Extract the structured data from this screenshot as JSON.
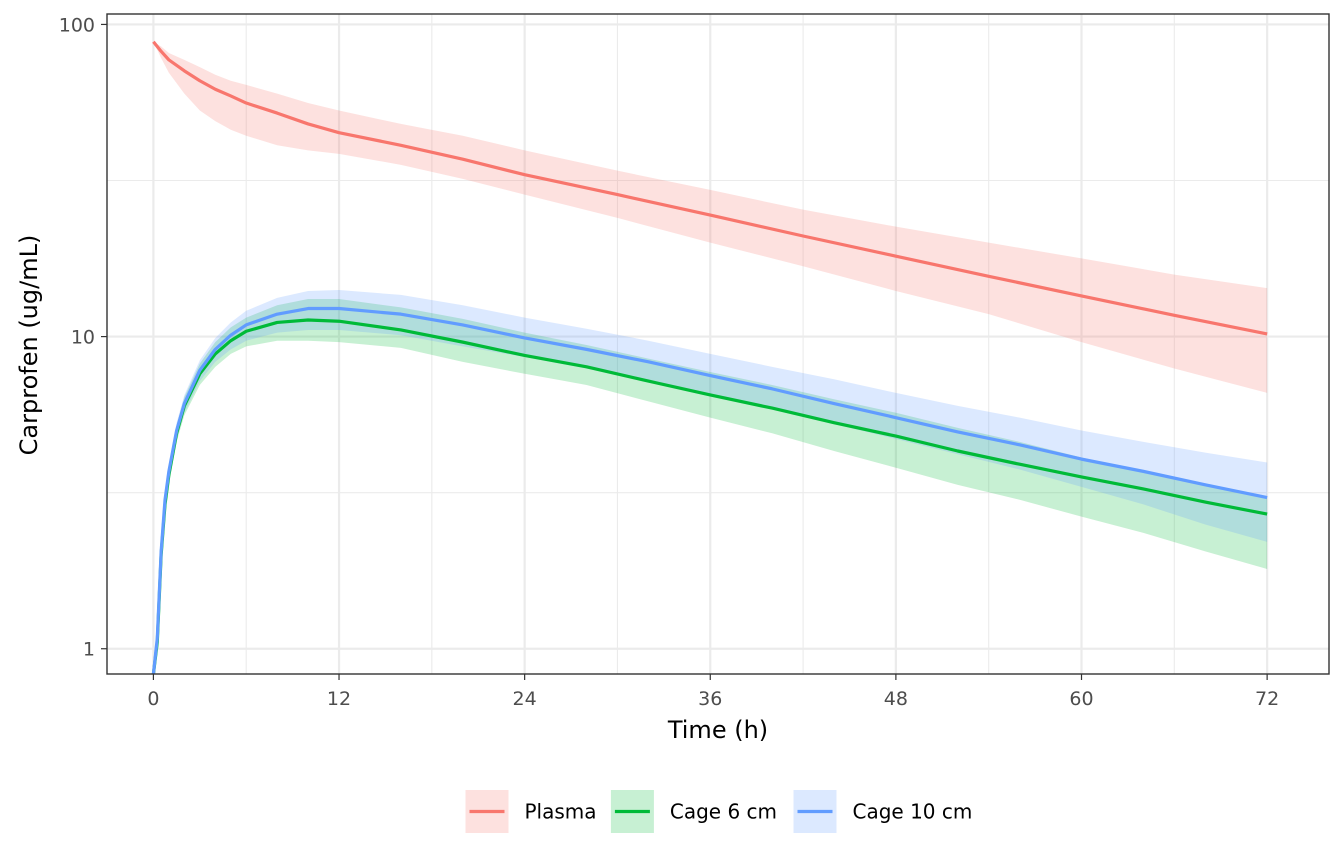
{
  "chart_data": {
    "type": "line",
    "title": "",
    "xlabel": "Time (h)",
    "ylabel": "Carprofen (ug/mL)",
    "x_scale": "linear",
    "y_scale": "log10",
    "xlim": [
      -3,
      76
    ],
    "ylim": [
      0.83,
      108
    ],
    "x_ticks": [
      0,
      12,
      24,
      36,
      48,
      60,
      72
    ],
    "x_tick_labels": [
      "0",
      "12",
      "24",
      "36",
      "48",
      "60",
      "72"
    ],
    "y_ticks": [
      1,
      10,
      100
    ],
    "y_tick_labels": [
      "1",
      "10",
      "100"
    ],
    "grid": true,
    "legend_position": "bottom",
    "series": [
      {
        "name": "Plasma",
        "color": "#F8766D",
        "x": [
          0,
          0.5,
          1,
          2,
          3,
          4,
          5,
          6,
          8,
          10,
          12,
          16,
          20,
          24,
          30,
          36,
          42,
          48,
          54,
          60,
          66,
          72
        ],
        "y": [
          88,
          82,
          77,
          71,
          66,
          62,
          59,
          56,
          52,
          48,
          45,
          41,
          37,
          33,
          28.5,
          24.5,
          21,
          18.1,
          15.6,
          13.5,
          11.7,
          10.2
        ],
        "lower": [
          88,
          78,
          70,
          60,
          53,
          49,
          46,
          44,
          41,
          39.5,
          38.5,
          35.5,
          32,
          28.5,
          24,
          20,
          16.8,
          14,
          11.8,
          9.6,
          7.9,
          6.6
        ],
        "upper": [
          88,
          85,
          81,
          77,
          73,
          69,
          66,
          64,
          60,
          56,
          53,
          48,
          44,
          39.5,
          34,
          29.5,
          25.5,
          22.5,
          20,
          17.8,
          15.8,
          14.3
        ]
      },
      {
        "name": "Cage 6 cm",
        "color": "#00BA38",
        "x": [
          0,
          0.25,
          0.5,
          0.75,
          1,
          1.5,
          2,
          3,
          4,
          5,
          6,
          8,
          10,
          12,
          16,
          20,
          24,
          28,
          32,
          36,
          40,
          44,
          48,
          52,
          56,
          60,
          64,
          68,
          72
        ],
        "y": [
          0.83,
          1.05,
          2.0,
          2.9,
          3.6,
          4.9,
          6.0,
          7.6,
          8.8,
          9.7,
          10.4,
          11.1,
          11.3,
          11.2,
          10.5,
          9.6,
          8.7,
          8.0,
          7.2,
          6.5,
          5.9,
          5.3,
          4.8,
          4.3,
          3.9,
          3.55,
          3.25,
          2.95,
          2.7
        ],
        "lower": [
          0.83,
          1.0,
          1.9,
          2.8,
          3.4,
          4.6,
          5.6,
          7.0,
          8.0,
          8.8,
          9.3,
          9.7,
          9.7,
          9.6,
          9.2,
          8.3,
          7.6,
          7.0,
          6.2,
          5.5,
          4.9,
          4.3,
          3.8,
          3.35,
          3.0,
          2.65,
          2.35,
          2.05,
          1.8
        ],
        "upper": [
          0.83,
          1.1,
          2.1,
          3.0,
          3.8,
          5.2,
          6.4,
          8.2,
          9.6,
          10.7,
          11.5,
          12.6,
          13.2,
          13.2,
          12.4,
          11.4,
          10.3,
          9.4,
          8.5,
          7.7,
          7.0,
          6.3,
          5.7,
          5.1,
          4.6,
          4.1,
          3.7,
          3.35,
          3.05
        ]
      },
      {
        "name": "Cage 10 cm",
        "color": "#619CFF",
        "x": [
          0,
          0.25,
          0.5,
          0.75,
          1,
          1.5,
          2,
          3,
          4,
          5,
          6,
          8,
          10,
          12,
          16,
          20,
          24,
          28,
          32,
          36,
          40,
          44,
          48,
          52,
          56,
          60,
          64,
          68,
          72
        ],
        "y": [
          0.83,
          1.08,
          2.05,
          3.0,
          3.7,
          5.0,
          6.1,
          7.8,
          9.1,
          10.1,
          10.9,
          11.8,
          12.3,
          12.3,
          11.8,
          10.9,
          9.9,
          9.1,
          8.3,
          7.5,
          6.8,
          6.1,
          5.5,
          4.95,
          4.5,
          4.05,
          3.7,
          3.35,
          3.05
        ],
        "lower": [
          0.83,
          1.0,
          1.95,
          2.85,
          3.5,
          4.7,
          5.7,
          7.2,
          8.3,
          9.1,
          9.7,
          10.3,
          10.5,
          10.5,
          10.1,
          9.3,
          8.6,
          7.9,
          7.2,
          6.5,
          5.85,
          5.25,
          4.7,
          4.2,
          3.75,
          3.3,
          2.9,
          2.5,
          2.2
        ],
        "upper": [
          0.83,
          1.15,
          2.15,
          3.15,
          3.9,
          5.3,
          6.5,
          8.4,
          9.9,
          11.1,
          12.1,
          13.3,
          14.0,
          14.1,
          13.6,
          12.6,
          11.5,
          10.6,
          9.7,
          8.8,
          8.0,
          7.3,
          6.6,
          6.0,
          5.5,
          5.0,
          4.6,
          4.25,
          3.95
        ]
      }
    ]
  }
}
